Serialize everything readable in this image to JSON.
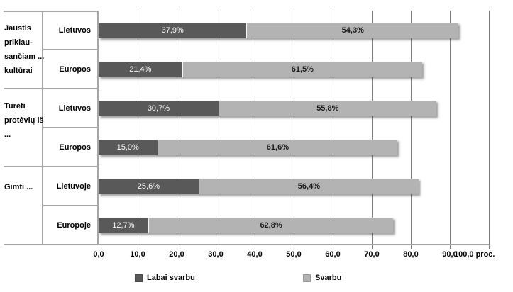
{
  "chart_data": {
    "type": "bar",
    "orientation": "horizontal",
    "stacked": true,
    "title": "",
    "x_axis": {
      "min": 0,
      "max": 100,
      "step": 10,
      "grid": true,
      "tick_labels": [
        "0,0",
        "10,0",
        "20,0",
        "30,0",
        "40,0",
        "50,0",
        "60,0",
        "70,0",
        "80,0",
        "90,0",
        "100,0"
      ],
      "unit_suffix": "proc."
    },
    "legend_position": "bottom",
    "series": [
      {
        "name": "Labai svarbu",
        "color": "#595959",
        "label_color": "#ffffff"
      },
      {
        "name": "Svarbu",
        "color": "#b3b3b3",
        "label_color": "#1a1a1a"
      }
    ],
    "groups": [
      {
        "label": "Jaustis\npriklau-\nsančiam ...\nkultūrai",
        "rows": [
          {
            "label": "Lietuvos",
            "values": [
              37.9,
              54.3
            ],
            "value_labels": [
              "37,9%",
              "54,3%"
            ]
          },
          {
            "label": "Europos",
            "values": [
              21.4,
              61.5
            ],
            "value_labels": [
              "21,4%",
              "61,5%"
            ]
          }
        ]
      },
      {
        "label": "Turėti\nprotėvių iš\n...",
        "rows": [
          {
            "label": "Lietuvos",
            "values": [
              30.7,
              55.8
            ],
            "value_labels": [
              "30,7%",
              "55,8%"
            ]
          },
          {
            "label": "Europos",
            "values": [
              15.0,
              61.6
            ],
            "value_labels": [
              "15,0%",
              "61,6%"
            ]
          }
        ]
      },
      {
        "label": "Gimti ...",
        "rows": [
          {
            "label": "Lietuvoje",
            "values": [
              25.6,
              56.4
            ],
            "value_labels": [
              "25,6%",
              "56,4%"
            ]
          },
          {
            "label": "Europoje",
            "values": [
              12.7,
              62.8
            ],
            "value_labels": [
              "12,7%",
              "62,8%"
            ]
          }
        ]
      }
    ]
  }
}
